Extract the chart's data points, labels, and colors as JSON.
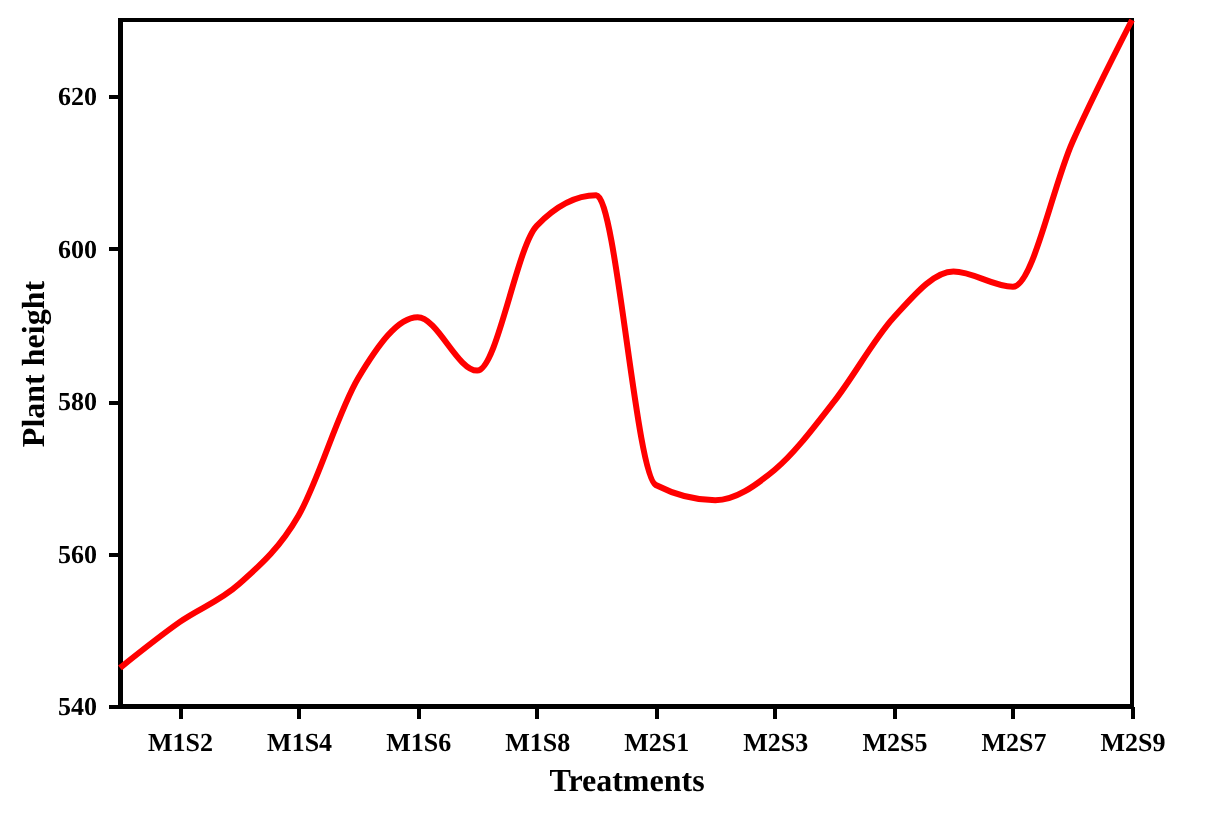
{
  "chart_data": {
    "type": "line",
    "xlabel": "Treatments",
    "ylabel": "Plant height",
    "categories": [
      null,
      "M1S2",
      null,
      "M1S4",
      null,
      "M1S6",
      null,
      "M1S8",
      null,
      "M2S1",
      null,
      "M2S3",
      null,
      "M2S5",
      null,
      "M2S7",
      null,
      "M2S9"
    ],
    "series": [
      {
        "color": "#ff0000",
        "values": [
          545,
          551,
          556,
          565,
          583,
          591,
          584,
          603,
          607,
          569,
          567,
          571,
          580,
          591,
          597,
          595,
          614,
          630
        ]
      }
    ],
    "ylim": [
      540,
      630
    ],
    "yticks": [
      540,
      560,
      580,
      600,
      620
    ],
    "grid": false,
    "marker": "none",
    "line_style": "solid"
  }
}
